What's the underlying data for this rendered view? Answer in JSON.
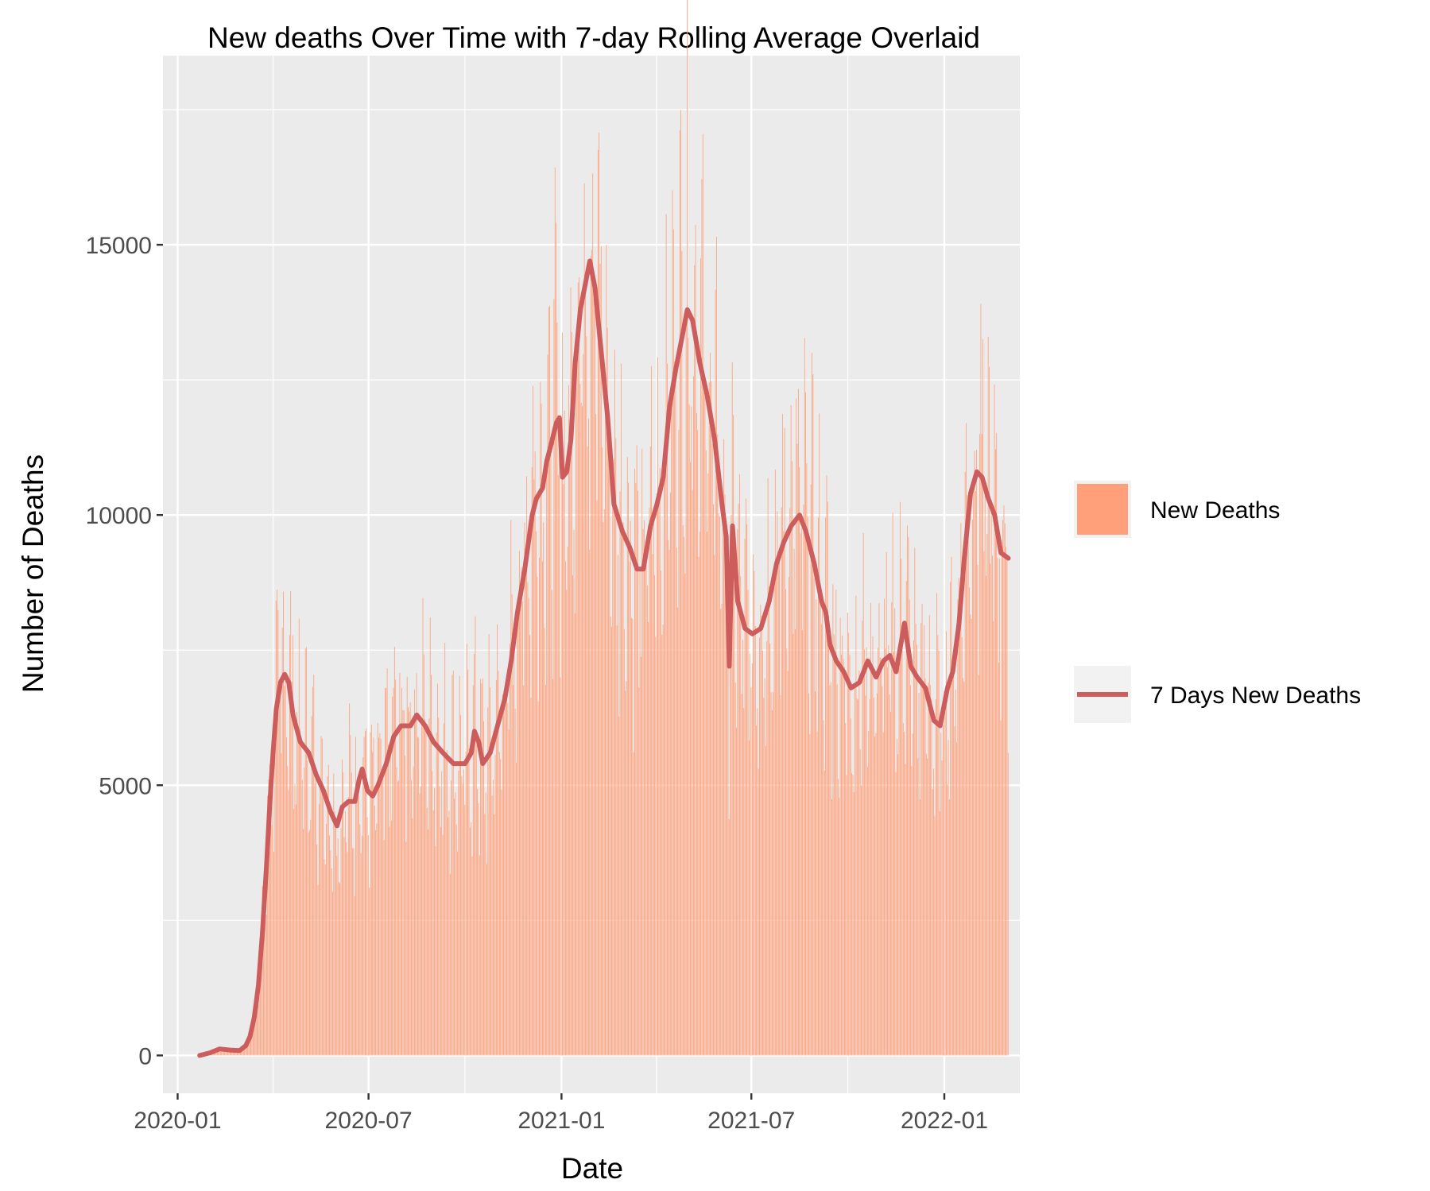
{
  "chart_data": {
    "type": "bar",
    "title": "New deaths Over Time with 7-day Rolling Average Overlaid",
    "xlabel": "Date",
    "ylabel": "Number of Deaths",
    "x_range": [
      "2019-12-18",
      "2022-03-14"
    ],
    "ylim": [
      -700,
      18500
    ],
    "x_ticks": [
      {
        "date": "2020-01-01",
        "label": "2020-01"
      },
      {
        "date": "2020-07-01",
        "label": "2020-07"
      },
      {
        "date": "2021-01-01",
        "label": "2021-01"
      },
      {
        "date": "2021-07-01",
        "label": "2021-07"
      },
      {
        "date": "2022-01-01",
        "label": "2022-01"
      }
    ],
    "y_ticks": [
      0,
      5000,
      10000,
      15000
    ],
    "grid": true,
    "legend_position": "right",
    "series": [
      {
        "name": "New Deaths",
        "type": "bar",
        "color": "#FFA07A",
        "start_date": "2020-01-22",
        "end_date": "2022-03-03"
      },
      {
        "name": "7 Days New Deaths",
        "type": "line",
        "color": "#CD5C5C",
        "points": [
          [
            "2020-01-22",
            0
          ],
          [
            "2020-02-01",
            50
          ],
          [
            "2020-02-10",
            120
          ],
          [
            "2020-02-20",
            100
          ],
          [
            "2020-02-29",
            90
          ],
          [
            "2020-03-06",
            180
          ],
          [
            "2020-03-10",
            350
          ],
          [
            "2020-03-14",
            700
          ],
          [
            "2020-03-18",
            1300
          ],
          [
            "2020-03-22",
            2300
          ],
          [
            "2020-03-26",
            3600
          ],
          [
            "2020-03-29",
            4700
          ],
          [
            "2020-04-01",
            5600
          ],
          [
            "2020-04-04",
            6400
          ],
          [
            "2020-04-08",
            6900
          ],
          [
            "2020-04-12",
            7050
          ],
          [
            "2020-04-16",
            6900
          ],
          [
            "2020-04-20",
            6300
          ],
          [
            "2020-04-27",
            5800
          ],
          [
            "2020-05-05",
            5600
          ],
          [
            "2020-05-12",
            5200
          ],
          [
            "2020-05-19",
            4900
          ],
          [
            "2020-05-26",
            4500
          ],
          [
            "2020-06-01",
            4250
          ],
          [
            "2020-06-06",
            4600
          ],
          [
            "2020-06-12",
            4700
          ],
          [
            "2020-06-18",
            4700
          ],
          [
            "2020-06-22",
            5100
          ],
          [
            "2020-06-25",
            5300
          ],
          [
            "2020-06-30",
            4900
          ],
          [
            "2020-07-05",
            4800
          ],
          [
            "2020-07-10",
            5000
          ],
          [
            "2020-07-18",
            5400
          ],
          [
            "2020-07-25",
            5900
          ],
          [
            "2020-08-01",
            6100
          ],
          [
            "2020-08-10",
            6100
          ],
          [
            "2020-08-16",
            6300
          ],
          [
            "2020-08-24",
            6100
          ],
          [
            "2020-09-01",
            5800
          ],
          [
            "2020-09-10",
            5600
          ],
          [
            "2020-09-20",
            5400
          ],
          [
            "2020-10-01",
            5400
          ],
          [
            "2020-10-07",
            5600
          ],
          [
            "2020-10-10",
            6000
          ],
          [
            "2020-10-14",
            5800
          ],
          [
            "2020-10-18",
            5400
          ],
          [
            "2020-10-25",
            5600
          ],
          [
            "2020-11-01",
            6100
          ],
          [
            "2020-11-08",
            6600
          ],
          [
            "2020-11-14",
            7300
          ],
          [
            "2020-11-20",
            8200
          ],
          [
            "2020-11-27",
            9000
          ],
          [
            "2020-12-04",
            10000
          ],
          [
            "2020-12-08",
            10300
          ],
          [
            "2020-12-14",
            10500
          ],
          [
            "2020-12-18",
            11000
          ],
          [
            "2020-12-22",
            11300
          ],
          [
            "2020-12-27",
            11700
          ],
          [
            "2020-12-30",
            11800
          ],
          [
            "2021-01-02",
            10700
          ],
          [
            "2021-01-06",
            10800
          ],
          [
            "2021-01-10",
            11400
          ],
          [
            "2021-01-14",
            12800
          ],
          [
            "2021-01-19",
            13800
          ],
          [
            "2021-01-24",
            14300
          ],
          [
            "2021-01-28",
            14700
          ],
          [
            "2021-02-02",
            14200
          ],
          [
            "2021-02-08",
            13000
          ],
          [
            "2021-02-14",
            11800
          ],
          [
            "2021-02-20",
            10200
          ],
          [
            "2021-02-28",
            9700
          ],
          [
            "2021-03-07",
            9400
          ],
          [
            "2021-03-14",
            9000
          ],
          [
            "2021-03-20",
            9000
          ],
          [
            "2021-03-27",
            9800
          ],
          [
            "2021-04-02",
            10200
          ],
          [
            "2021-04-08",
            10700
          ],
          [
            "2021-04-14",
            12000
          ],
          [
            "2021-04-20",
            12700
          ],
          [
            "2021-04-27",
            13400
          ],
          [
            "2021-05-01",
            13800
          ],
          [
            "2021-05-06",
            13600
          ],
          [
            "2021-05-13",
            12800
          ],
          [
            "2021-05-20",
            12200
          ],
          [
            "2021-05-27",
            11400
          ],
          [
            "2021-06-03",
            10200
          ],
          [
            "2021-06-07",
            9600
          ],
          [
            "2021-06-10",
            7200
          ],
          [
            "2021-06-13",
            9800
          ],
          [
            "2021-06-18",
            8400
          ],
          [
            "2021-06-25",
            7900
          ],
          [
            "2021-07-02",
            7800
          ],
          [
            "2021-07-10",
            7900
          ],
          [
            "2021-07-18",
            8400
          ],
          [
            "2021-07-25",
            9100
          ],
          [
            "2021-08-01",
            9500
          ],
          [
            "2021-08-08",
            9800
          ],
          [
            "2021-08-16",
            10000
          ],
          [
            "2021-08-22",
            9700
          ],
          [
            "2021-08-30",
            9100
          ],
          [
            "2021-09-06",
            8400
          ],
          [
            "2021-09-10",
            8200
          ],
          [
            "2021-09-14",
            7600
          ],
          [
            "2021-09-20",
            7300
          ],
          [
            "2021-09-27",
            7100
          ],
          [
            "2021-10-04",
            6800
          ],
          [
            "2021-10-12",
            6900
          ],
          [
            "2021-10-20",
            7300
          ],
          [
            "2021-10-28",
            7000
          ],
          [
            "2021-11-04",
            7300
          ],
          [
            "2021-11-10",
            7400
          ],
          [
            "2021-11-16",
            7100
          ],
          [
            "2021-11-24",
            8000
          ],
          [
            "2021-11-30",
            7200
          ],
          [
            "2021-12-06",
            7000
          ],
          [
            "2021-12-14",
            6800
          ],
          [
            "2021-12-22",
            6200
          ],
          [
            "2021-12-28",
            6100
          ],
          [
            "2022-01-04",
            6800
          ],
          [
            "2022-01-09",
            7100
          ],
          [
            "2022-01-15",
            8000
          ],
          [
            "2022-01-20",
            9200
          ],
          [
            "2022-01-26",
            10400
          ],
          [
            "2022-02-01",
            10800
          ],
          [
            "2022-02-06",
            10700
          ],
          [
            "2022-02-12",
            10300
          ],
          [
            "2022-02-18",
            10000
          ],
          [
            "2022-02-24",
            9300
          ],
          [
            "2022-03-03",
            9200
          ]
        ]
      }
    ]
  }
}
